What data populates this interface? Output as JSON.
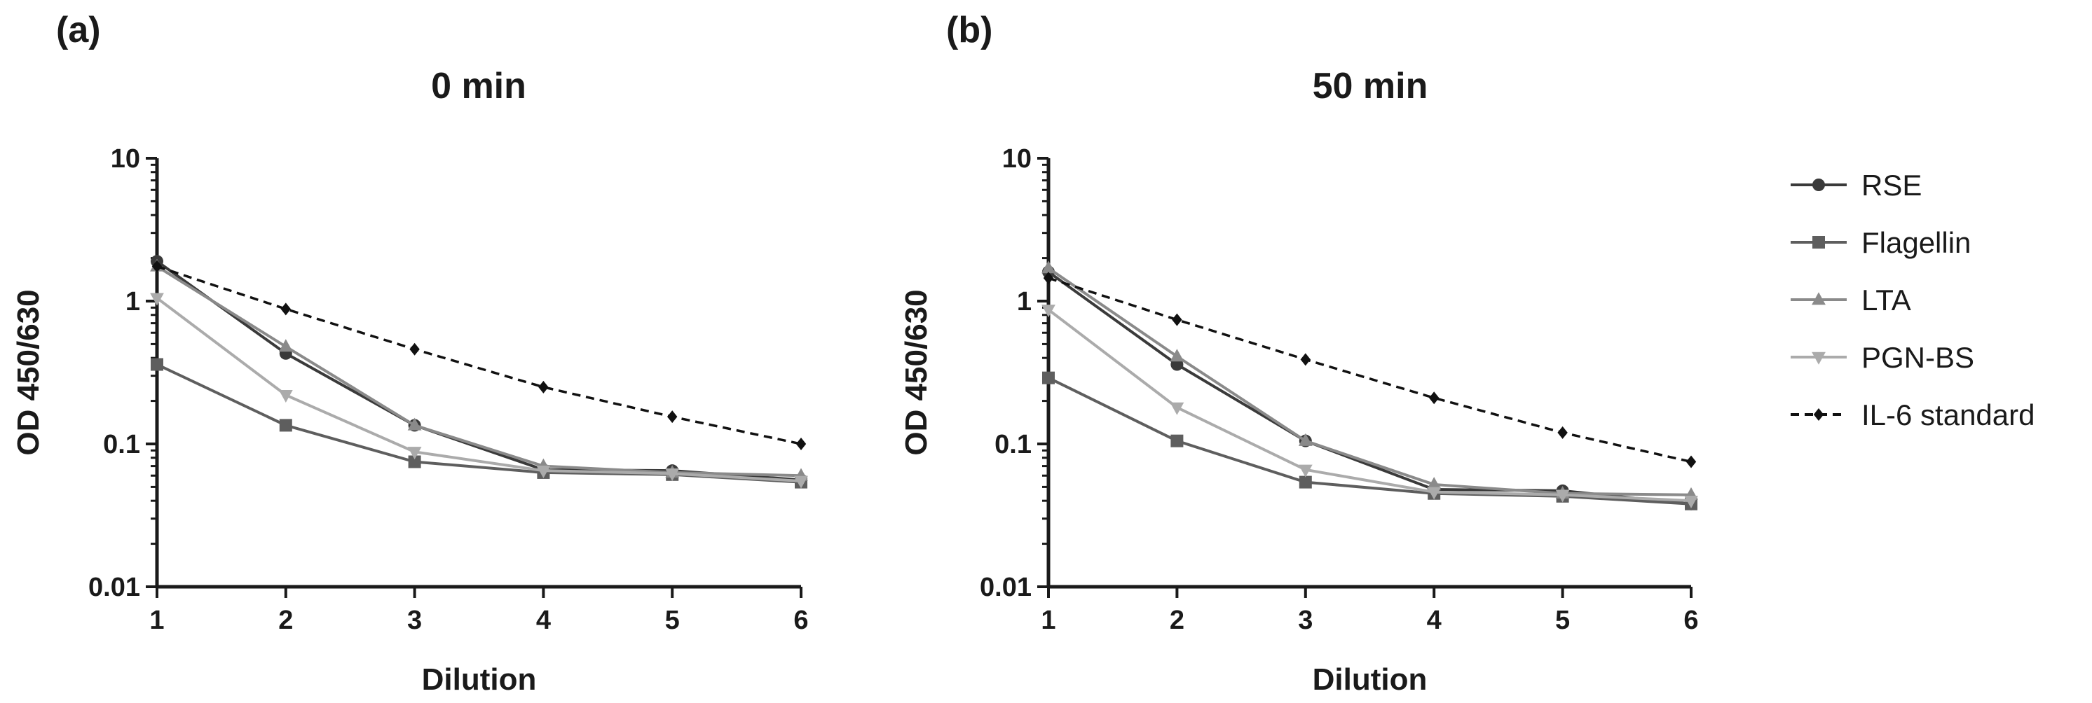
{
  "chart_data": [
    {
      "type": "line",
      "panel_label": "(a)",
      "title": "0 min",
      "xlabel": "Dilution",
      "ylabel": "OD 450/630",
      "yscale": "log",
      "xlim": [
        1,
        6
      ],
      "ylim": [
        0.01,
        10
      ],
      "x": [
        1,
        2,
        3,
        4,
        5,
        6
      ],
      "xtick_labels": [
        "1",
        "2",
        "3",
        "4",
        "5",
        "6"
      ],
      "yticks": [
        10,
        1,
        0.1,
        0.01
      ],
      "ytick_labels": [
        "10",
        "1",
        "0.1",
        "0.01"
      ],
      "series": [
        {
          "name": "RSE",
          "values": [
            1.9,
            0.43,
            0.135,
            0.066,
            0.065,
            0.056
          ],
          "color": "#3a3a3a",
          "marker": "circle",
          "dash": "solid"
        },
        {
          "name": "Flagellin",
          "values": [
            0.36,
            0.135,
            0.075,
            0.063,
            0.061,
            0.054
          ],
          "color": "#5e5e5e",
          "marker": "square",
          "dash": "solid"
        },
        {
          "name": "LTA",
          "values": [
            1.75,
            0.48,
            0.135,
            0.07,
            0.063,
            0.06
          ],
          "color": "#8a8a8a",
          "marker": "triangle-up",
          "dash": "solid"
        },
        {
          "name": "PGN-BS",
          "values": [
            1.05,
            0.22,
            0.088,
            0.065,
            0.062,
            0.055
          ],
          "color": "#ababab",
          "marker": "triangle-down",
          "dash": "solid"
        },
        {
          "name": "IL-6 standard",
          "values": [
            1.75,
            0.88,
            0.46,
            0.25,
            0.155,
            0.1
          ],
          "color": "#111111",
          "marker": "diamond",
          "dash": "dashed"
        }
      ]
    },
    {
      "type": "line",
      "panel_label": "(b)",
      "title": "50 min",
      "xlabel": "Dilution",
      "ylabel": "OD 450/630",
      "yscale": "log",
      "xlim": [
        1,
        6
      ],
      "ylim": [
        0.01,
        10
      ],
      "x": [
        1,
        2,
        3,
        4,
        5,
        6
      ],
      "xtick_labels": [
        "1",
        "2",
        "3",
        "4",
        "5",
        "6"
      ],
      "yticks": [
        10,
        1,
        0.1,
        0.01
      ],
      "ytick_labels": [
        "10",
        "1",
        "0.1",
        "0.01"
      ],
      "series": [
        {
          "name": "RSE",
          "values": [
            1.6,
            0.36,
            0.105,
            0.048,
            0.047,
            0.038
          ],
          "color": "#3a3a3a",
          "marker": "circle",
          "dash": "solid"
        },
        {
          "name": "Flagellin",
          "values": [
            0.29,
            0.105,
            0.054,
            0.045,
            0.043,
            0.038
          ],
          "color": "#5e5e5e",
          "marker": "square",
          "dash": "solid"
        },
        {
          "name": "LTA",
          "values": [
            1.7,
            0.41,
            0.105,
            0.052,
            0.045,
            0.044
          ],
          "color": "#8a8a8a",
          "marker": "triangle-up",
          "dash": "solid"
        },
        {
          "name": "PGN-BS",
          "values": [
            0.87,
            0.18,
            0.066,
            0.046,
            0.044,
            0.04
          ],
          "color": "#ababab",
          "marker": "triangle-down",
          "dash": "solid"
        },
        {
          "name": "IL-6 standard",
          "values": [
            1.45,
            0.74,
            0.39,
            0.21,
            0.12,
            0.075
          ],
          "color": "#111111",
          "marker": "diamond",
          "dash": "dashed"
        }
      ]
    }
  ],
  "legend": {
    "placement": "right",
    "items": [
      {
        "label": "RSE",
        "color": "#3a3a3a",
        "marker": "circle",
        "dash": "solid"
      },
      {
        "label": "Flagellin",
        "color": "#5e5e5e",
        "marker": "square",
        "dash": "solid"
      },
      {
        "label": "LTA",
        "color": "#8a8a8a",
        "marker": "triangle-up",
        "dash": "solid"
      },
      {
        "label": "PGN-BS",
        "color": "#ababab",
        "marker": "triangle-down",
        "dash": "solid"
      },
      {
        "label": "IL-6 standard",
        "color": "#111111",
        "marker": "diamond",
        "dash": "dashed"
      }
    ]
  }
}
